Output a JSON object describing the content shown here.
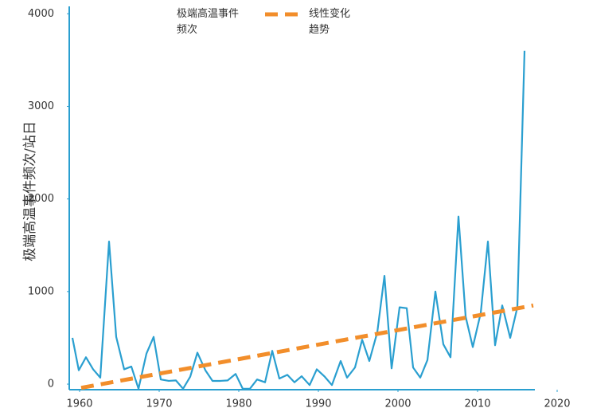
{
  "chart_data": {
    "type": "line",
    "ylabel": "极端高温事件频次/站日",
    "xlim": [
      1958.7,
      2020
    ],
    "xticks": [
      1960,
      1970,
      1980,
      1990,
      2000,
      2010,
      2020
    ],
    "ylim": [
      -60,
      4080
    ],
    "yticks": [
      0,
      1000,
      2000,
      3000,
      4000
    ],
    "series": [
      {
        "name": "极端高温事件频次",
        "color": "#2a9fd0",
        "style": "solid",
        "x": [
          1959.1,
          1959.9,
          1960.8,
          1961.7,
          1962.6,
          1963.7,
          1964.6,
          1965.6,
          1966.5,
          1967.4,
          1968.4,
          1969.3,
          1970.2,
          1971.2,
          1972.1,
          1973.0,
          1973.9,
          1974.8,
          1975.8,
          1976.7,
          1977.7,
          1978.6,
          1979.6,
          1980.5,
          1981.4,
          1982.3,
          1983.3,
          1984.2,
          1985.1,
          1986.1,
          1987.0,
          1987.9,
          1988.9,
          1989.8,
          1990.8,
          1991.7,
          1992.8,
          1993.6,
          1994.6,
          1995.5,
          1996.4,
          1997.4,
          1998.3,
          1999.2,
          2000.2,
          2001.1,
          2001.9,
          2002.8,
          2003.7,
          2004.7,
          2005.7,
          2006.6,
          2007.6,
          2008.5,
          2009.4,
          2010.4,
          2011.3,
          2012.2,
          2013.1,
          2014.1,
          2015.0,
          2015.9
        ],
        "values": [
          500,
          150,
          290,
          160,
          70,
          1540,
          510,
          160,
          190,
          -50,
          330,
          510,
          50,
          35,
          40,
          -50,
          80,
          340,
          150,
          35,
          35,
          40,
          110,
          -50,
          -50,
          50,
          20,
          360,
          60,
          100,
          20,
          85,
          -10,
          160,
          80,
          -10,
          250,
          70,
          180,
          480,
          250,
          560,
          1170,
          170,
          830,
          820,
          180,
          70,
          260,
          1000,
          430,
          290,
          1810,
          730,
          400,
          770,
          1540,
          420,
          850,
          500,
          830,
          3600
        ]
      },
      {
        "name": "线性变化趋势",
        "color": "#f28e2b",
        "style": "dashed",
        "x": [
          1960.2,
          2017
        ],
        "values": [
          -40,
          850
        ]
      }
    ]
  }
}
